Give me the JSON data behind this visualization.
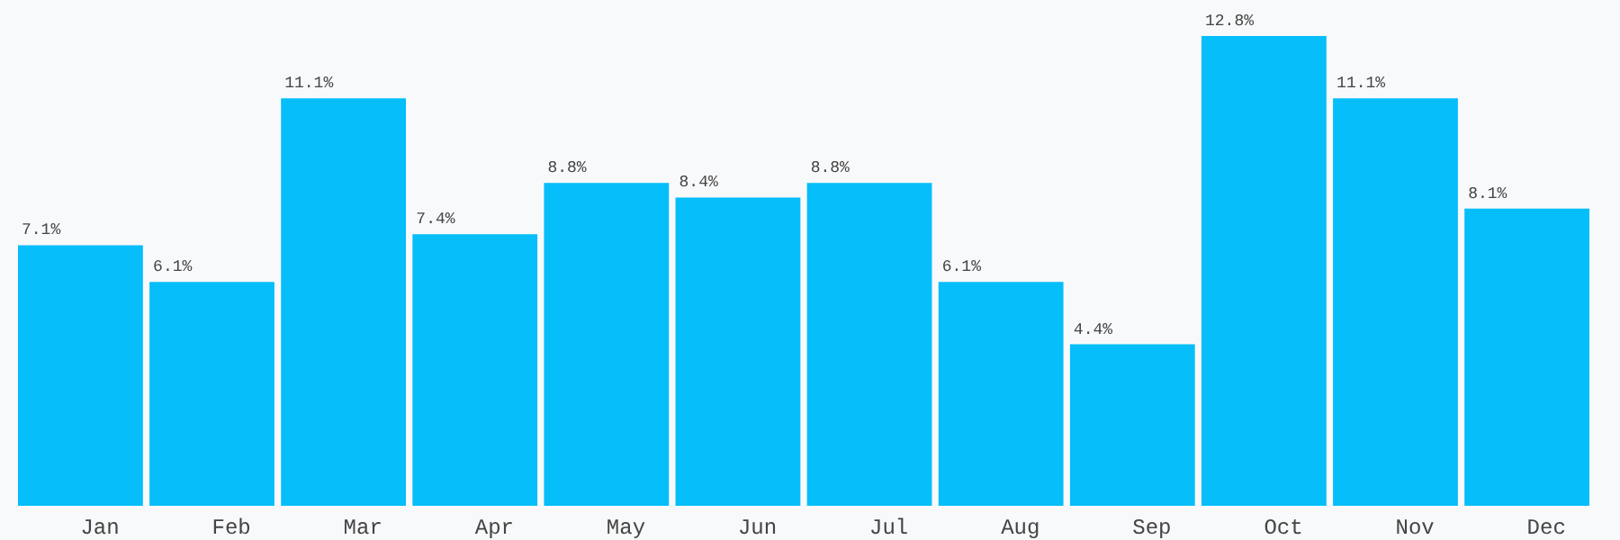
{
  "chart_data": {
    "type": "bar",
    "categories": [
      "Jan",
      "Feb",
      "Mar",
      "Apr",
      "May",
      "Jun",
      "Jul",
      "Aug",
      "Sep",
      "Oct",
      "Nov",
      "Dec"
    ],
    "values": [
      7.1,
      6.1,
      11.1,
      7.4,
      8.8,
      8.4,
      8.8,
      6.1,
      4.4,
      12.8,
      11.1,
      8.1
    ],
    "value_labels": [
      "7.1%",
      "6.1%",
      "11.1%",
      "7.4%",
      "8.8%",
      "8.4%",
      "8.8%",
      "6.1%",
      "4.4%",
      "12.8%",
      "11.1%",
      "8.1%"
    ],
    "color": "#05befa"
  }
}
